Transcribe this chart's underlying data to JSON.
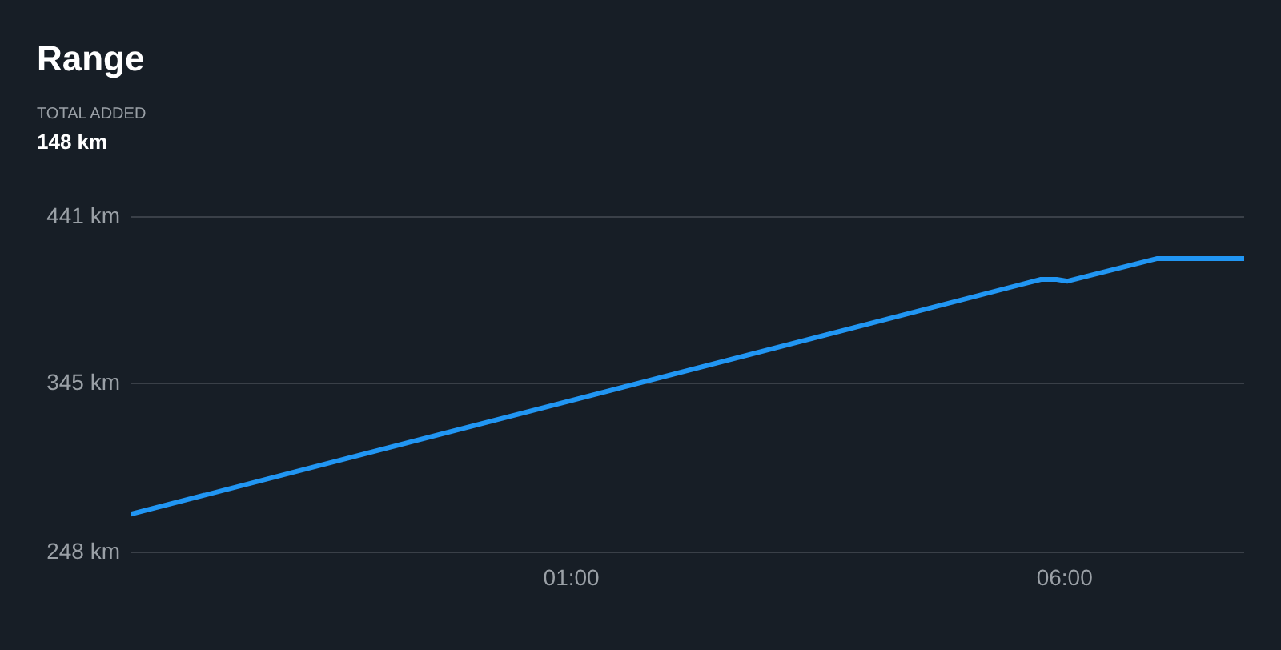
{
  "chart_data": {
    "type": "line",
    "title": "Range",
    "subtitle": "TOTAL ADDED",
    "annotations": [
      "148 km"
    ],
    "x": [
      -3.46,
      5.76,
      5.92,
      6.03,
      6.94,
      7.82
    ],
    "series": [
      {
        "color": "#2196f3",
        "values": [
          270,
          405,
          405,
          404,
          417,
          417
        ]
      }
    ],
    "xlim": [
      -3.46,
      7.82
    ],
    "xticks": [
      {
        "value": 1,
        "label": "01:00"
      },
      {
        "value": 6,
        "label": "06:00"
      }
    ],
    "ylim": [
      248,
      441
    ],
    "yticks": [
      {
        "value": 248,
        "label": "248 km"
      },
      {
        "value": 345,
        "label": "345 km"
      },
      {
        "value": 441,
        "label": "441 km"
      }
    ],
    "grid": "y",
    "legend": false,
    "marker": "none",
    "line_style": "solid"
  }
}
